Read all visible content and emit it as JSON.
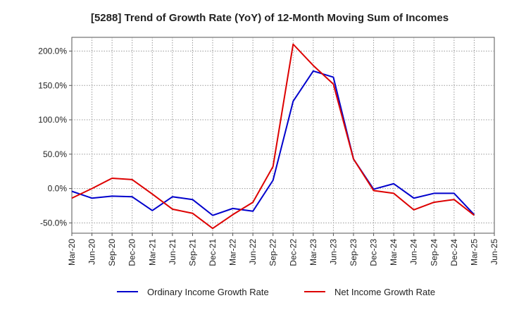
{
  "chart_data": {
    "type": "line",
    "title": "[5288]  Trend of Growth Rate (YoY) of 12-Month Moving Sum of Incomes",
    "xlabel": "",
    "ylabel": "",
    "x": [
      "Mar-20",
      "Jun-20",
      "Sep-20",
      "Dec-20",
      "Mar-21",
      "Jun-21",
      "Sep-21",
      "Dec-21",
      "Mar-22",
      "Jun-22",
      "Sep-22",
      "Dec-22",
      "Mar-23",
      "Jun-23",
      "Sep-23",
      "Dec-23",
      "Mar-24",
      "Jun-24",
      "Sep-24",
      "Dec-24",
      "Mar-25",
      "Jun-25"
    ],
    "ylim": [
      -65,
      220
    ],
    "yticks": [
      200,
      150,
      100,
      50,
      0,
      -50
    ],
    "ytick_labels": [
      "200.0%",
      "150.0%",
      "100.0%",
      "50.0%",
      "0.0%",
      "-50.0%"
    ],
    "grid": true,
    "legend_position": "bottom",
    "series": [
      {
        "name": "Ordinary Income Growth Rate",
        "color": "#0000cc",
        "values": [
          -4,
          -14,
          -11,
          -12,
          -32,
          -12,
          -16,
          -39,
          -29,
          -33,
          12,
          127,
          171,
          162,
          43,
          -1,
          7,
          -14,
          -7,
          -7,
          -38,
          null
        ]
      },
      {
        "name": "Net Income Growth Rate",
        "color": "#dd0000",
        "values": [
          -14,
          0,
          15,
          13,
          -8,
          -30,
          -36,
          -58,
          -38,
          -20,
          32,
          210,
          179,
          152,
          43,
          -3,
          -7,
          -31,
          -20,
          -16,
          -39,
          null
        ]
      }
    ]
  }
}
